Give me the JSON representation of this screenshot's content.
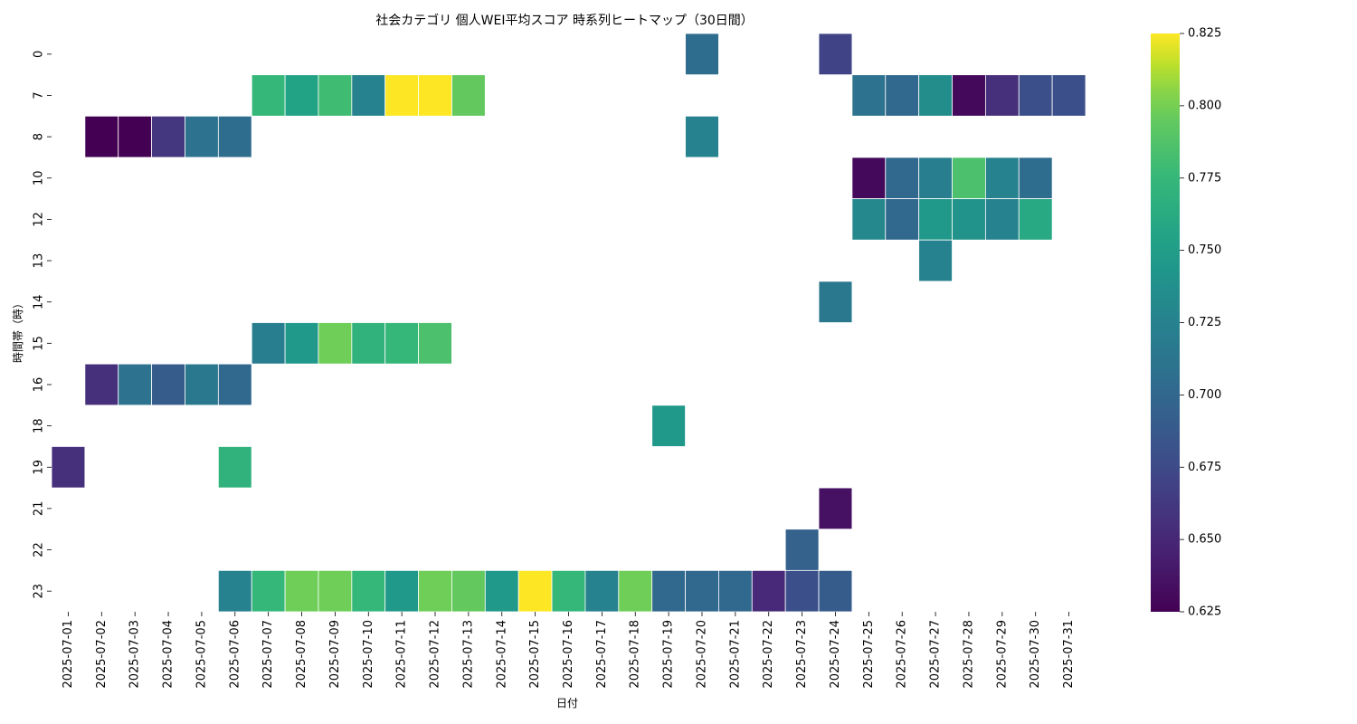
{
  "chart_data": {
    "type": "heatmap",
    "title": "社会カテゴリ 個人WEI平均スコア 時系列ヒートマップ（30日間）",
    "xlabel": "日付",
    "ylabel": "時間帯（時）",
    "x": [
      "2025-07-01",
      "2025-07-02",
      "2025-07-03",
      "2025-07-04",
      "2025-07-05",
      "2025-07-06",
      "2025-07-07",
      "2025-07-08",
      "2025-07-09",
      "2025-07-10",
      "2025-07-11",
      "2025-07-12",
      "2025-07-13",
      "2025-07-14",
      "2025-07-15",
      "2025-07-16",
      "2025-07-17",
      "2025-07-18",
      "2025-07-19",
      "2025-07-20",
      "2025-07-21",
      "2025-07-22",
      "2025-07-23",
      "2025-07-24",
      "2025-07-25",
      "2025-07-26",
      "2025-07-27",
      "2025-07-28",
      "2025-07-29",
      "2025-07-30",
      "2025-07-31"
    ],
    "y": [
      "0",
      "7",
      "8",
      "10",
      "12",
      "13",
      "14",
      "15",
      "16",
      "18",
      "19",
      "21",
      "22",
      "23"
    ],
    "values": [
      [
        null,
        null,
        null,
        null,
        null,
        null,
        null,
        null,
        null,
        null,
        null,
        null,
        null,
        null,
        null,
        null,
        null,
        null,
        null,
        0.705,
        null,
        null,
        null,
        0.67,
        null,
        null,
        null,
        null,
        null,
        null,
        null
      ],
      [
        null,
        null,
        null,
        null,
        null,
        null,
        0.775,
        0.755,
        0.78,
        0.725,
        0.825,
        0.825,
        0.795,
        null,
        null,
        null,
        null,
        null,
        null,
        null,
        null,
        null,
        null,
        null,
        0.71,
        0.7,
        0.735,
        0.63,
        0.655,
        0.68,
        0.68
      ],
      [
        null,
        0.625,
        0.625,
        0.66,
        0.71,
        0.705,
        null,
        null,
        null,
        null,
        null,
        null,
        null,
        null,
        null,
        null,
        null,
        null,
        null,
        0.725,
        null,
        null,
        null,
        null,
        null,
        null,
        null,
        null,
        null,
        null,
        null
      ],
      [
        null,
        null,
        null,
        null,
        null,
        null,
        null,
        null,
        null,
        null,
        null,
        null,
        null,
        null,
        null,
        null,
        null,
        null,
        null,
        null,
        null,
        null,
        null,
        null,
        0.63,
        0.7,
        0.72,
        0.785,
        0.725,
        0.705,
        null
      ],
      [
        null,
        null,
        null,
        null,
        null,
        null,
        null,
        null,
        null,
        null,
        null,
        null,
        null,
        null,
        null,
        null,
        null,
        null,
        null,
        null,
        null,
        null,
        null,
        null,
        0.73,
        0.7,
        0.745,
        0.74,
        0.725,
        0.76,
        null
      ],
      [
        null,
        null,
        null,
        null,
        null,
        null,
        null,
        null,
        null,
        null,
        null,
        null,
        null,
        null,
        null,
        null,
        null,
        null,
        null,
        null,
        null,
        null,
        null,
        null,
        null,
        null,
        0.725,
        null,
        null,
        null,
        null
      ],
      [
        null,
        null,
        null,
        null,
        null,
        null,
        null,
        null,
        null,
        null,
        null,
        null,
        null,
        null,
        null,
        null,
        null,
        null,
        null,
        null,
        null,
        null,
        null,
        0.715,
        null,
        null,
        null,
        null,
        null,
        null,
        null
      ],
      [
        null,
        null,
        null,
        null,
        null,
        null,
        0.72,
        0.745,
        0.8,
        0.77,
        0.775,
        0.785,
        null,
        null,
        null,
        null,
        null,
        null,
        null,
        null,
        null,
        null,
        null,
        null,
        null,
        null,
        null,
        null,
        null,
        null,
        null
      ],
      [
        null,
        0.655,
        0.71,
        0.69,
        0.715,
        0.7,
        null,
        null,
        null,
        null,
        null,
        null,
        null,
        null,
        null,
        null,
        null,
        null,
        null,
        null,
        null,
        null,
        null,
        null,
        null,
        null,
        null,
        null,
        null,
        null,
        null
      ],
      [
        null,
        null,
        null,
        null,
        null,
        null,
        null,
        null,
        null,
        null,
        null,
        null,
        null,
        null,
        null,
        null,
        null,
        null,
        0.745,
        null,
        null,
        null,
        null,
        null,
        null,
        null,
        null,
        null,
        null,
        null,
        null
      ],
      [
        0.655,
        null,
        null,
        null,
        null,
        0.77,
        null,
        null,
        null,
        null,
        null,
        null,
        null,
        null,
        null,
        null,
        null,
        null,
        null,
        null,
        null,
        null,
        null,
        null,
        null,
        null,
        null,
        null,
        null,
        null,
        null
      ],
      [
        null,
        null,
        null,
        null,
        null,
        null,
        null,
        null,
        null,
        null,
        null,
        null,
        null,
        null,
        null,
        null,
        null,
        null,
        null,
        null,
        null,
        null,
        null,
        0.635,
        null,
        null,
        null,
        null,
        null,
        null,
        null
      ],
      [
        null,
        null,
        null,
        null,
        null,
        null,
        null,
        null,
        null,
        null,
        null,
        null,
        null,
        null,
        null,
        null,
        null,
        null,
        null,
        null,
        null,
        null,
        0.695,
        null,
        null,
        null,
        null,
        null,
        null,
        null,
        null
      ],
      [
        null,
        null,
        null,
        null,
        null,
        0.725,
        0.775,
        0.8,
        0.8,
        0.775,
        0.745,
        0.8,
        0.795,
        0.745,
        0.825,
        0.775,
        0.725,
        0.8,
        0.7,
        0.7,
        0.7,
        0.65,
        0.68,
        0.69,
        null,
        null,
        null,
        null,
        null,
        null,
        null
      ]
    ],
    "colorbar": {
      "min": 0.625,
      "max": 0.825,
      "ticks": [
        "0.625",
        "0.650",
        "0.675",
        "0.700",
        "0.725",
        "0.750",
        "0.775",
        "0.800",
        "0.825"
      ]
    },
    "colormap": "viridis",
    "grid": false,
    "cell_border_color": "#ffffff"
  }
}
